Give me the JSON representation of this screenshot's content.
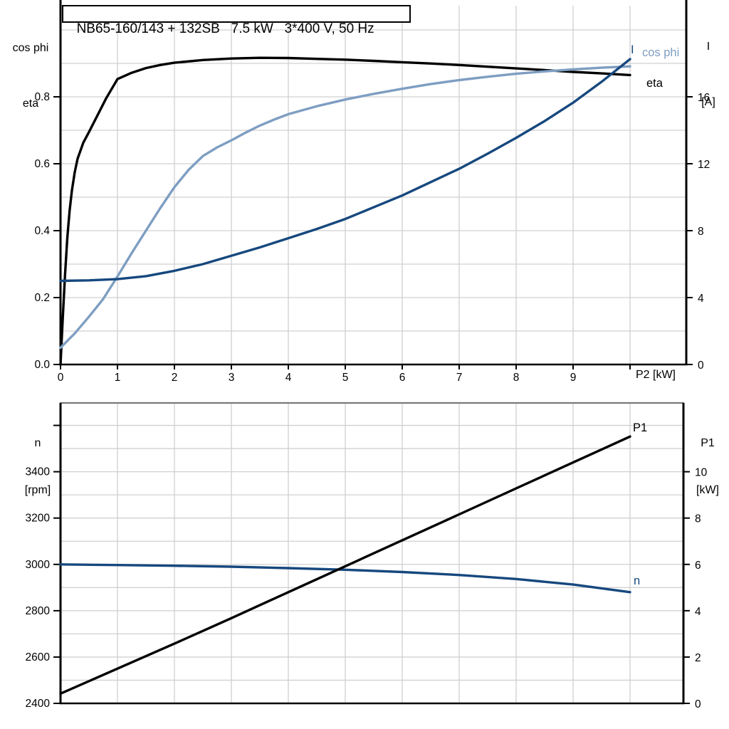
{
  "title": "NB65-160/143 + 132SB   7.5 kW   3*400 V, 50 Hz",
  "colors": {
    "black": "#000000",
    "dark_blue": "#16487e",
    "light_blue": "#7e9ec2",
    "grid": "#d0d0d0",
    "border_gray": "#7a7a7a",
    "background": "#ffffff"
  },
  "chart_data": [
    {
      "type": "line",
      "name": "top-chart-cosphi-eta-current",
      "title": "NB65-160/143 + 132SB   7.5 kW   3*400 V, 50 Hz",
      "x_axis": {
        "label": "P2 [kW]",
        "range": [
          0,
          11
        ],
        "grid": [
          1,
          2,
          3,
          4,
          5,
          6,
          7,
          8,
          9,
          10
        ],
        "ticks": [
          {
            "v": 0,
            "label": "0"
          },
          {
            "v": 1,
            "label": "1"
          },
          {
            "v": 2,
            "label": "2"
          },
          {
            "v": 3,
            "label": "3"
          },
          {
            "v": 4,
            "label": "4"
          },
          {
            "v": 5,
            "label": "5"
          },
          {
            "v": 6,
            "label": "6"
          },
          {
            "v": 7,
            "label": "7"
          },
          {
            "v": 8,
            "label": "8"
          },
          {
            "v": 9,
            "label": "9"
          },
          {
            "v": 10,
            "label": ""
          }
        ]
      },
      "left_axis": {
        "label_lines": [
          "cos phi",
          "eta"
        ],
        "range": [
          0,
          1.07
        ],
        "grid": [
          0.1,
          0.2,
          0.3,
          0.4,
          0.5,
          0.6,
          0.7,
          0.8,
          0.9,
          1.0
        ],
        "ticks": [
          {
            "v": 0.0,
            "label": "0.0"
          },
          {
            "v": 0.2,
            "label": "0.2"
          },
          {
            "v": 0.4,
            "label": "0.4"
          },
          {
            "v": 0.6,
            "label": "0.6"
          },
          {
            "v": 0.8,
            "label": "0.8"
          }
        ]
      },
      "right_axis": {
        "label_lines": [
          "I",
          "[A]"
        ],
        "range": [
          0,
          21.4
        ],
        "ticks": [
          {
            "v": 0,
            "label": "0"
          },
          {
            "v": 4,
            "label": "4"
          },
          {
            "v": 8,
            "label": "8"
          },
          {
            "v": 12,
            "label": "12"
          },
          {
            "v": 16,
            "label": "16"
          }
        ]
      },
      "series": [
        {
          "name": "eta",
          "label": "eta",
          "axis": "left",
          "color": "#000000",
          "x": [
            0,
            0.04,
            0.08,
            0.12,
            0.16,
            0.2,
            0.25,
            0.3,
            0.4,
            0.5,
            0.65,
            0.8,
            1.0,
            1.25,
            1.5,
            1.75,
            2.0,
            2.5,
            3.0,
            3.5,
            4.0,
            4.5,
            5.0,
            5.5,
            6.0,
            6.5,
            7.0,
            7.5,
            8.0,
            8.5,
            9.0,
            9.5,
            10.0
          ],
          "y": [
            0,
            0.14,
            0.27,
            0.38,
            0.46,
            0.52,
            0.575,
            0.615,
            0.663,
            0.695,
            0.745,
            0.795,
            0.853,
            0.872,
            0.886,
            0.895,
            0.902,
            0.91,
            0.9145,
            0.9165,
            0.916,
            0.9135,
            0.911,
            0.9075,
            0.9035,
            0.8995,
            0.895,
            0.89,
            0.885,
            0.88,
            0.8745,
            0.87,
            0.865
          ]
        },
        {
          "name": "cos phi",
          "label": "cos phi",
          "axis": "left",
          "color": "#7e9ec2",
          "x": [
            0,
            0.25,
            0.5,
            0.75,
            1.0,
            1.25,
            1.5,
            1.75,
            2.0,
            2.25,
            2.5,
            2.75,
            3.0,
            3.25,
            3.5,
            3.75,
            4.0,
            4.5,
            5.0,
            5.5,
            6.0,
            6.5,
            7.0,
            7.5,
            8.0,
            8.5,
            9.0,
            9.5,
            10.0
          ],
          "y": [
            0.05,
            0.093,
            0.143,
            0.196,
            0.263,
            0.333,
            0.4,
            0.467,
            0.53,
            0.582,
            0.623,
            0.649,
            0.67,
            0.693,
            0.714,
            0.732,
            0.748,
            0.772,
            0.792,
            0.809,
            0.824,
            0.838,
            0.85,
            0.86,
            0.869,
            0.876,
            0.882,
            0.887,
            0.891
          ]
        },
        {
          "name": "I",
          "label": "I",
          "axis": "right",
          "color": "#16487e",
          "x": [
            0,
            0.5,
            1.0,
            1.5,
            2.0,
            2.5,
            3.0,
            3.5,
            4.0,
            4.5,
            5.0,
            5.5,
            6.0,
            6.5,
            7.0,
            7.5,
            8.0,
            8.5,
            9.0,
            9.5,
            10.0
          ],
          "y": [
            5.0,
            5.03,
            5.1,
            5.28,
            5.6,
            6.0,
            6.5,
            7.0,
            7.55,
            8.1,
            8.7,
            9.4,
            10.1,
            10.9,
            11.7,
            12.6,
            13.55,
            14.55,
            15.65,
            16.9,
            18.25
          ]
        }
      ]
    },
    {
      "type": "line",
      "name": "bottom-chart-speed-power",
      "x_axis": {
        "label": "",
        "range": [
          0,
          10.95
        ],
        "grid": [
          1,
          2,
          3,
          4,
          5,
          6,
          7,
          8,
          9,
          10
        ],
        "ticks": []
      },
      "left_axis": {
        "label_lines": [
          "n",
          "[rpm]"
        ],
        "range": [
          2400,
          3700
        ],
        "grid": [
          2500,
          2600,
          2700,
          2800,
          2900,
          3000,
          3100,
          3200,
          3300,
          3400,
          3500,
          3600
        ],
        "ticks": [
          {
            "v": 2400,
            "label": "2400"
          },
          {
            "v": 2600,
            "label": "2600"
          },
          {
            "v": 2800,
            "label": "2800"
          },
          {
            "v": 3000,
            "label": "3000"
          },
          {
            "v": 3200,
            "label": "3200"
          },
          {
            "v": 3400,
            "label": "3400"
          },
          {
            "v": 3600,
            "label": ""
          }
        ]
      },
      "right_axis": {
        "label_lines": [
          "P1",
          "[kW]"
        ],
        "range": [
          0,
          13
        ],
        "ticks": [
          {
            "v": 0,
            "label": "0"
          },
          {
            "v": 2,
            "label": "2"
          },
          {
            "v": 4,
            "label": "4"
          },
          {
            "v": 6,
            "label": "6"
          },
          {
            "v": 8,
            "label": "8"
          },
          {
            "v": 10,
            "label": "10"
          }
        ]
      },
      "series": [
        {
          "name": "n",
          "label": "n",
          "axis": "left",
          "color": "#16487e",
          "x": [
            0,
            1,
            2,
            3,
            4,
            5,
            6,
            7,
            8,
            9,
            10
          ],
          "y": [
            3000,
            2997,
            2994,
            2990,
            2984,
            2977,
            2967,
            2954,
            2937,
            2913,
            2880
          ]
        },
        {
          "name": "P1",
          "label": "P1",
          "axis": "right",
          "color": "#000000",
          "x": [
            0,
            1,
            2,
            3,
            4,
            5,
            6,
            7,
            8,
            9,
            10
          ],
          "y": [
            0.42,
            1.5,
            2.58,
            3.68,
            4.8,
            5.92,
            7.04,
            8.16,
            9.28,
            10.4,
            11.52
          ]
        }
      ]
    }
  ]
}
